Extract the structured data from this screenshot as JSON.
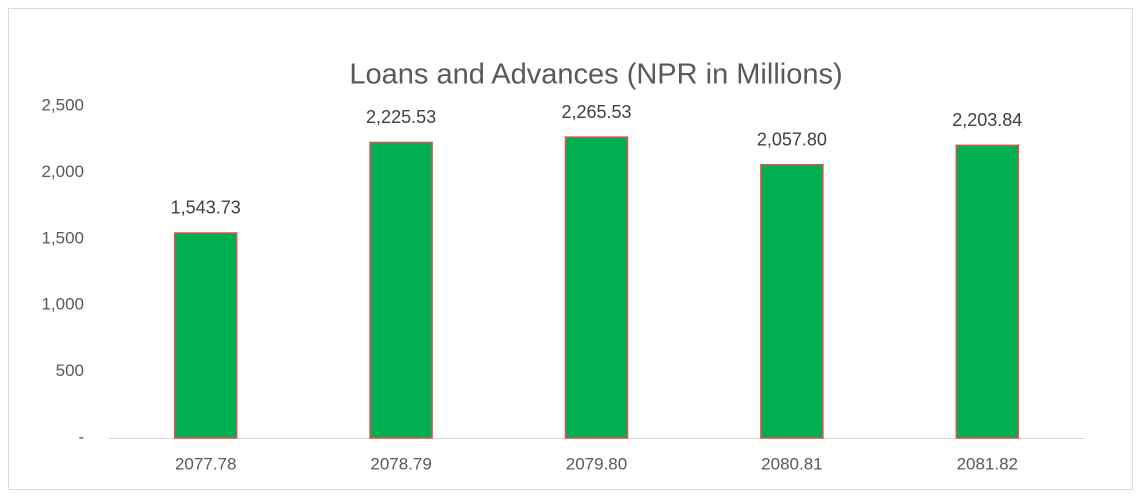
{
  "chart_data": {
    "type": "bar",
    "title": "Loans and Advances  (NPR in Millions)",
    "categories": [
      "2077.78",
      "2078.79",
      "2079.80",
      "2080.81",
      "2081.82"
    ],
    "values": [
      1543.73,
      2225.53,
      2265.53,
      2057.8,
      2203.84
    ],
    "value_labels": [
      "1,543.73",
      "2,225.53",
      "2,265.53",
      "2,057.80",
      "2,203.84"
    ],
    "color": "#00b050",
    "edgecolor": "#e05050",
    "ylim": [
      0,
      2500
    ],
    "yticks": [
      {
        "value": 0,
        "label": "-"
      },
      500,
      {
        "value": 1000,
        "label": "1,000"
      },
      {
        "value": 1500,
        "label": "1,500"
      },
      {
        "value": 2000,
        "label": "2,000"
      },
      {
        "value": 2500,
        "label": "2,500"
      }
    ],
    "grid": false
  }
}
